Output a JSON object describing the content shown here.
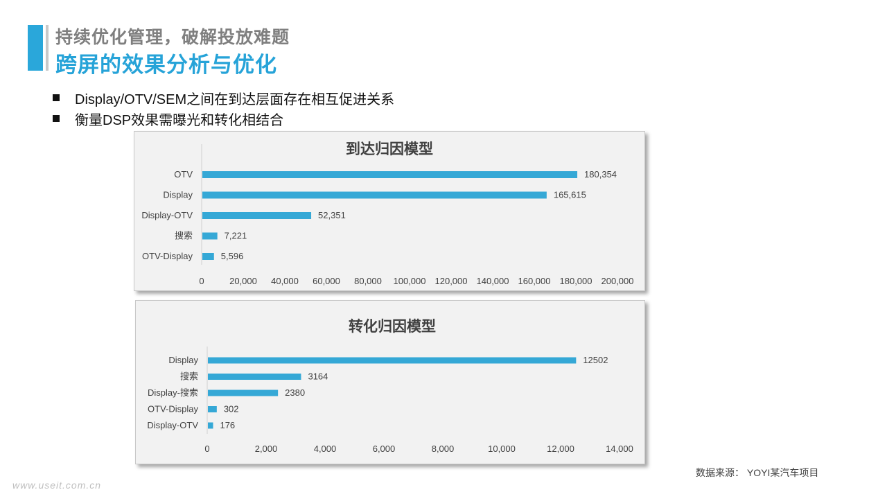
{
  "header": {
    "line1": "持续优化管理，破解投放难题",
    "line2": "跨屏的效果分析与优化"
  },
  "bullets": [
    "Display/OTV/SEM之间在到达层面存在相互促进关系",
    "衡量DSP效果需曝光和转化相结合"
  ],
  "footer": {
    "source": "数据来源： YOYI某汽车项目",
    "watermark": "www.useit.com.cn"
  },
  "colors": {
    "bar": "#35a8d6",
    "accent": "#2aa7da"
  },
  "chart_data": [
    {
      "type": "bar",
      "orientation": "horizontal",
      "title": "到达归因模型",
      "categories": [
        "OTV",
        "Display",
        "Display-OTV",
        "搜索",
        "OTV-Display"
      ],
      "values": [
        180354,
        165615,
        52351,
        7221,
        5596
      ],
      "value_labels": [
        "180,354",
        "165,615",
        "52,351",
        "7,221",
        "5,596"
      ],
      "xlim": [
        0,
        200000
      ],
      "ticks": [
        "0",
        "20,000",
        "40,000",
        "60,000",
        "80,000",
        "100,000",
        "120,000",
        "140,000",
        "160,000",
        "180,000",
        "200,000"
      ],
      "grid": false
    },
    {
      "type": "bar",
      "orientation": "horizontal",
      "title": "转化归因模型",
      "categories": [
        "Display",
        "搜索",
        "Display-搜索",
        "OTV-Display",
        "Display-OTV"
      ],
      "values": [
        12502,
        3164,
        2380,
        302,
        176
      ],
      "value_labels": [
        "12502",
        "3164",
        "2380",
        "302",
        "176"
      ],
      "xlim": [
        0,
        14000
      ],
      "ticks": [
        "0",
        "2,000",
        "4,000",
        "6,000",
        "8,000",
        "10,000",
        "12,000",
        "14,000"
      ],
      "grid": false
    }
  ]
}
